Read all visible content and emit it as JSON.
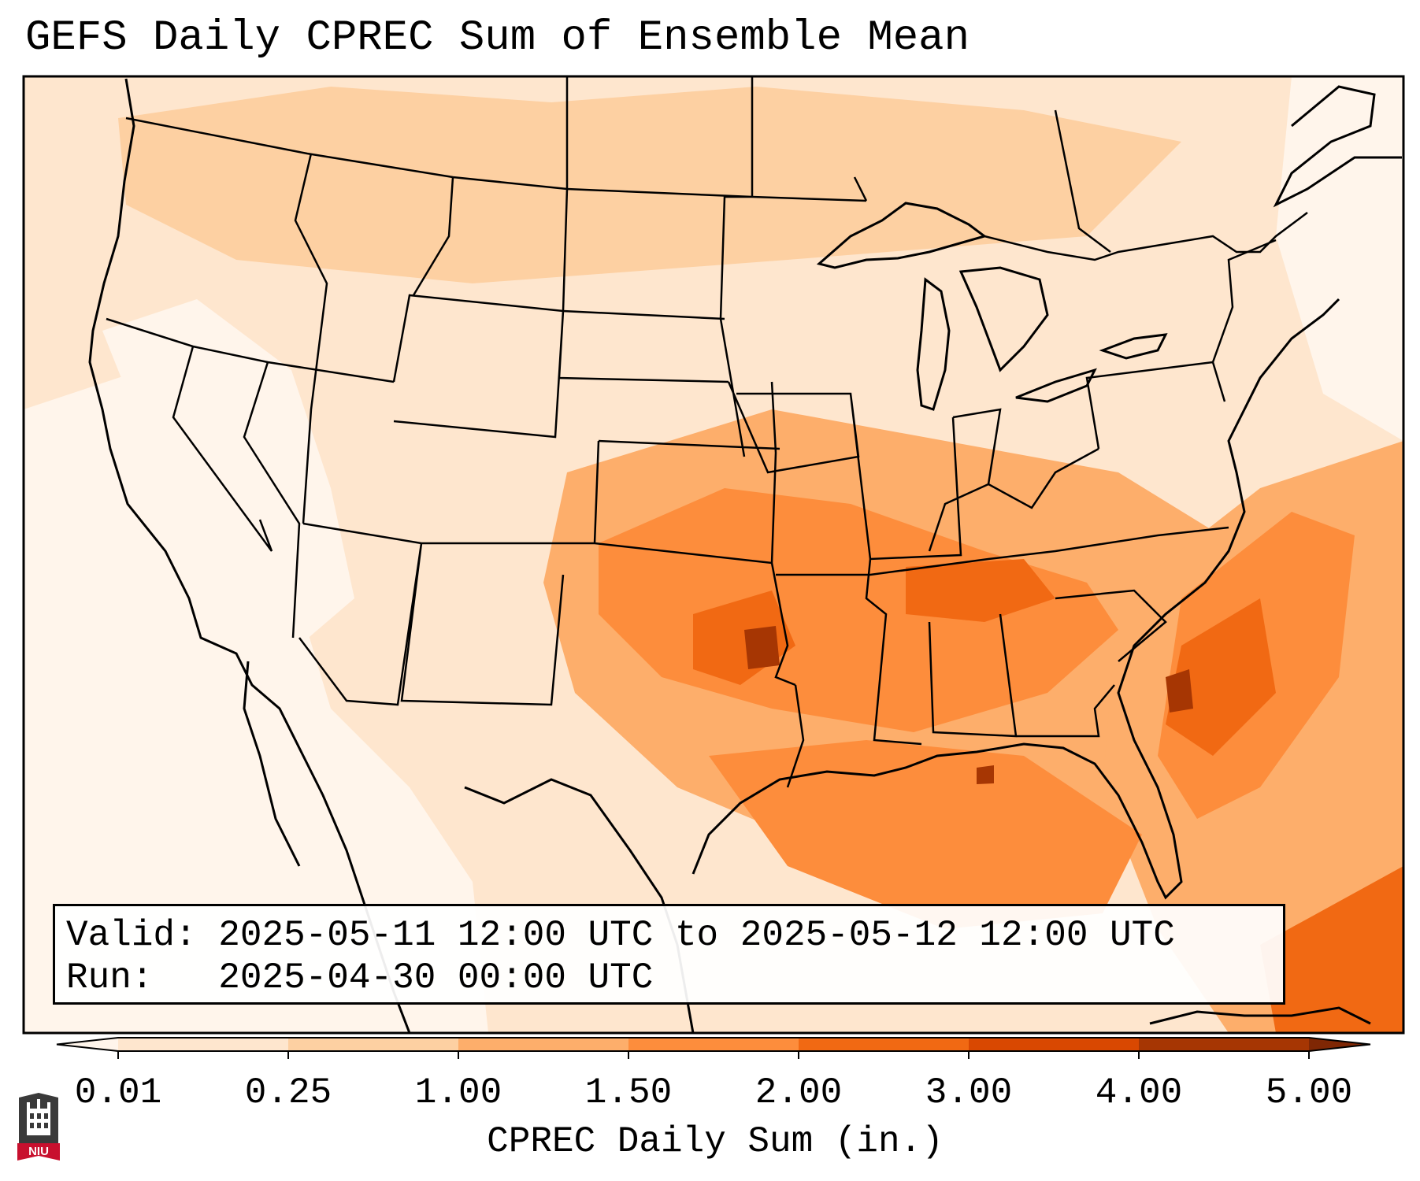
{
  "title": "GEFS Daily CPREC Sum of Ensemble Mean",
  "info": {
    "valid_label": "Valid:",
    "valid_value": "2025-05-11 12:00 UTC to 2025-05-12 12:00 UTC",
    "run_label": "Run:",
    "run_value": "2025-04-30 00:00 UTC"
  },
  "colorbar": {
    "label": "CPREC Daily Sum (in.)",
    "ticks": [
      "0.01",
      "0.25",
      "1.00",
      "1.50",
      "2.00",
      "3.00",
      "4.00",
      "5.00"
    ],
    "colors": [
      "#fff5eb",
      "#fee6ce",
      "#fdd0a2",
      "#fdae6b",
      "#fd8d3c",
      "#f16913",
      "#d94801",
      "#a63603",
      "#7f2704"
    ]
  },
  "logo": {
    "text": "NIU",
    "colors": {
      "shield": "#3a3a3a",
      "banner": "#c8102e"
    }
  }
}
